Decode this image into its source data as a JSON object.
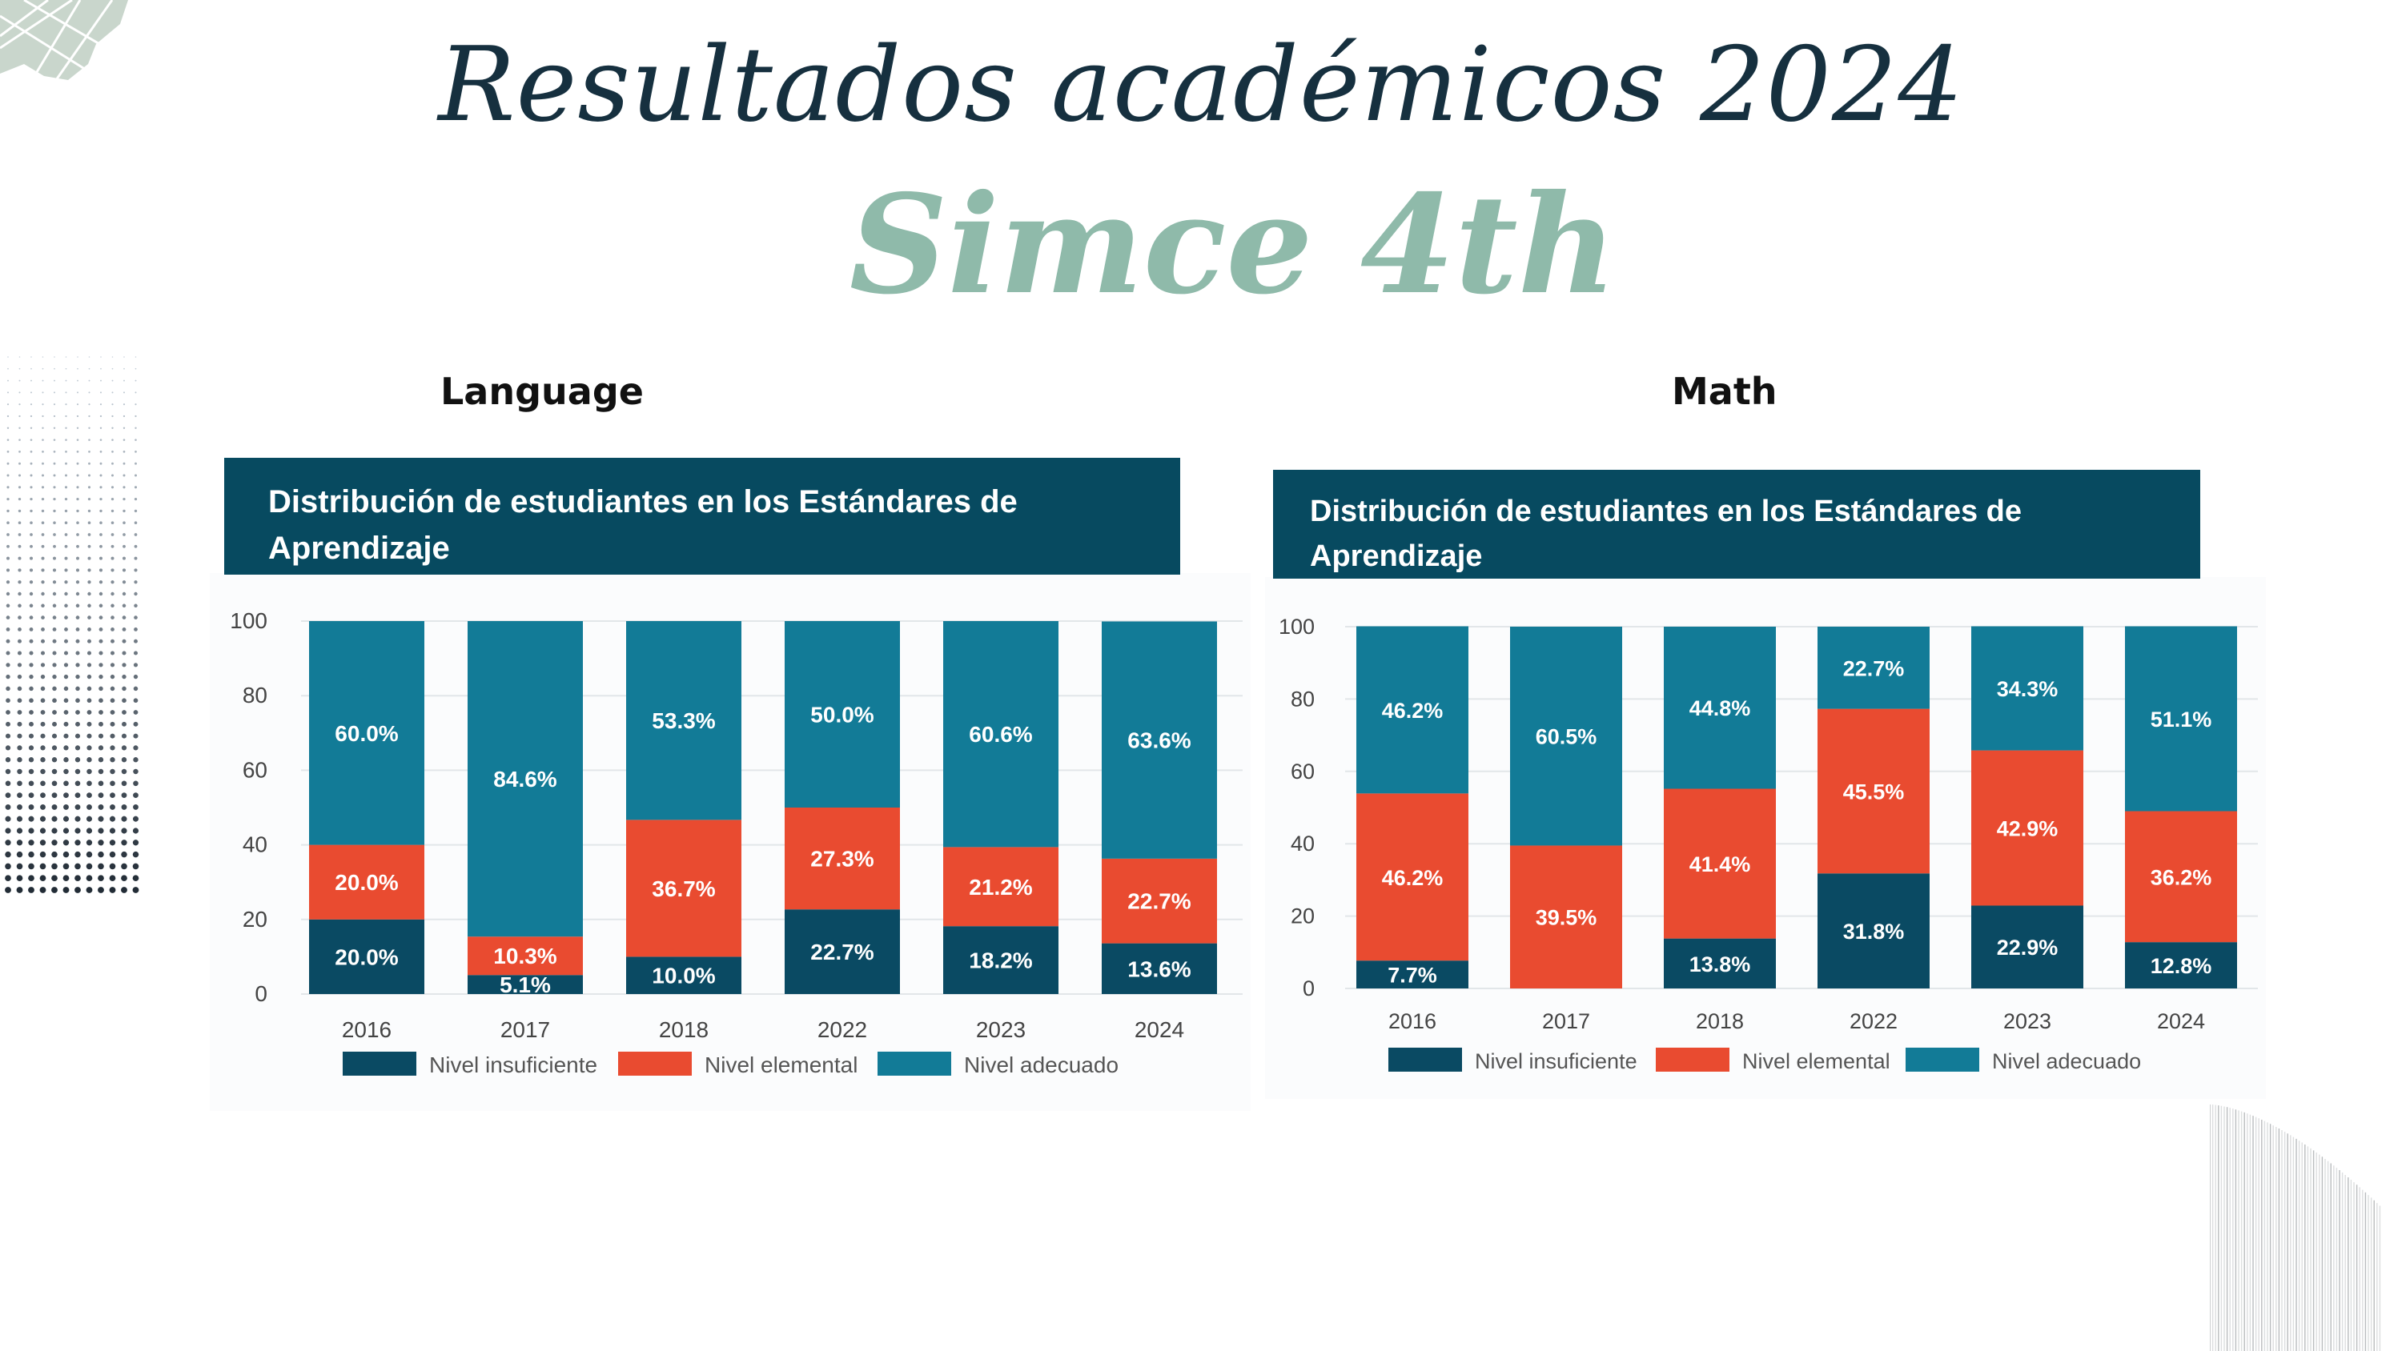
{
  "slide": {
    "title": "Resultados académicos 2024",
    "subtitle": "Simce 4th",
    "colors": {
      "title": "#16303f",
      "subtitle": "#8fbaaa",
      "header_bg": "#074a60",
      "nivel_insuficiente": "#0a4a63",
      "nivel_elemental": "#e94b30",
      "nivel_adecuado": "#127b97"
    }
  },
  "chart_data": [
    {
      "label": "Language",
      "title": "Distribución de estudiantes en los Estándares de Aprendizaje",
      "title_lines": [
        "Distribución de estudiantes en los Estándares de",
        "Aprendizaje"
      ],
      "type": "bar",
      "stacked": true,
      "categories": [
        "2016",
        "2017",
        "2018",
        "2022",
        "2023",
        "2024"
      ],
      "ylim": [
        0,
        100
      ],
      "yticks": [
        "0",
        "20",
        "40",
        "60",
        "80",
        "100"
      ],
      "grid": true,
      "legend": "bottom",
      "series": [
        {
          "name": "Nivel insuficiente",
          "values": [
            20.0,
            5.1,
            10.0,
            22.7,
            18.2,
            13.6
          ],
          "labels": [
            "20.0%",
            "5.1%",
            "10.0%",
            "22.7%",
            "18.2%",
            "13.6%"
          ]
        },
        {
          "name": "Nivel elemental",
          "values": [
            20.0,
            10.3,
            36.7,
            27.3,
            21.2,
            22.7
          ],
          "labels": [
            "20.0%",
            "10.3%",
            "36.7%",
            "27.3%",
            "21.2%",
            "22.7%"
          ]
        },
        {
          "name": "Nivel adecuado",
          "values": [
            60.0,
            84.6,
            53.3,
            50.0,
            60.6,
            63.6
          ],
          "labels": [
            "60.0%",
            "84.6%",
            "53.3%",
            "50.0%",
            "60.6%",
            "63.6%"
          ]
        }
      ]
    },
    {
      "label": "Math",
      "title": "Distribución de estudiantes en los Estándares de Aprendizaje",
      "title_lines": [
        "Distribución de estudiantes en los Estándares de",
        "Aprendizaje"
      ],
      "type": "bar",
      "stacked": true,
      "categories": [
        "2016",
        "2017",
        "2018",
        "2022",
        "2023",
        "2024"
      ],
      "ylim": [
        0,
        100
      ],
      "yticks": [
        "0",
        "20",
        "40",
        "60",
        "80",
        "100"
      ],
      "grid": true,
      "legend": "bottom",
      "series": [
        {
          "name": "Nivel insuficiente",
          "values": [
            7.7,
            0,
            13.8,
            31.8,
            22.9,
            12.8
          ],
          "labels": [
            "7.7%",
            "",
            "13.8%",
            "31.8%",
            "22.9%",
            "12.8%"
          ]
        },
        {
          "name": "Nivel elemental",
          "values": [
            46.2,
            39.5,
            41.4,
            45.5,
            42.9,
            36.2
          ],
          "labels": [
            "46.2%",
            "39.5%",
            "41.4%",
            "45.5%",
            "42.9%",
            "36.2%"
          ]
        },
        {
          "name": "Nivel adecuado",
          "values": [
            46.2,
            60.5,
            44.8,
            22.7,
            34.3,
            51.1
          ],
          "labels": [
            "46.2%",
            "60.5%",
            "44.8%",
            "22.7%",
            "34.3%",
            "51.1%"
          ]
        }
      ]
    }
  ]
}
